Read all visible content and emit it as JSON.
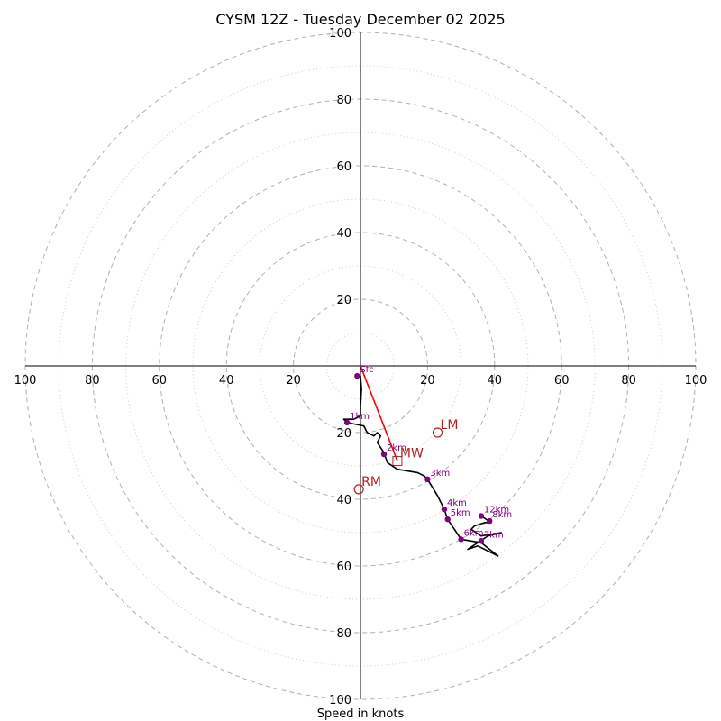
{
  "chart_data": {
    "type": "hodograph",
    "title": "CYSM 12Z - Tuesday December 02 2025",
    "xlabel": "Speed in knots",
    "max_speed": 100,
    "major_rings": [
      20,
      40,
      60,
      80,
      100
    ],
    "minor_rings": [
      10,
      30,
      50,
      70,
      90
    ],
    "tick_labels": {
      "top": [
        "20",
        "40",
        "60",
        "80",
        "100"
      ],
      "bottom": [
        "20",
        "40",
        "60",
        "80",
        "100"
      ],
      "left": [
        "20",
        "40",
        "60",
        "80",
        "100"
      ],
      "right": [
        "20",
        "40",
        "60",
        "80",
        "100"
      ]
    },
    "hodograph_trace": [
      [
        0,
        -3
      ],
      [
        0.3,
        -7
      ],
      [
        0,
        -12
      ],
      [
        0,
        -15
      ],
      [
        -2,
        -16
      ],
      [
        -5,
        -16
      ],
      [
        -4,
        -17
      ],
      [
        1,
        -18
      ],
      [
        2,
        -20
      ],
      [
        4,
        -21
      ],
      [
        5,
        -20
      ],
      [
        6,
        -21
      ],
      [
        5,
        -23
      ],
      [
        7,
        -26
      ],
      [
        8,
        -29
      ],
      [
        11,
        -31
      ],
      [
        17,
        -32
      ],
      [
        19,
        -33
      ],
      [
        20,
        -34
      ],
      [
        23,
        -39
      ],
      [
        25,
        -43
      ],
      [
        26,
        -46
      ],
      [
        28,
        -49
      ],
      [
        30,
        -52
      ],
      [
        36,
        -53
      ],
      [
        41,
        -57
      ],
      [
        35,
        -54
      ],
      [
        32,
        -55
      ],
      [
        38,
        -51
      ],
      [
        42,
        -50
      ],
      [
        36,
        -51
      ],
      [
        33,
        -49
      ],
      [
        34,
        -48
      ],
      [
        37,
        -47
      ],
      [
        39,
        -47
      ],
      [
        36,
        -45
      ]
    ],
    "height_markers": [
      {
        "label": "Sfc",
        "u": -1,
        "v": -3
      },
      {
        "label": "1km",
        "u": -4,
        "v": -17
      },
      {
        "label": "2km",
        "u": 7,
        "v": -26.5
      },
      {
        "label": "3km",
        "u": 20,
        "v": -34
      },
      {
        "label": "4km",
        "u": 25,
        "v": -43
      },
      {
        "label": "5km",
        "u": 26,
        "v": -46
      },
      {
        "label": "6km",
        "u": 30,
        "v": -52
      },
      {
        "label": "7km",
        "u": 36,
        "v": -52.5
      },
      {
        "label": "8km",
        "u": 38.5,
        "v": -46.5
      },
      {
        "label": "12km",
        "u": 36,
        "v": -45
      }
    ],
    "mean_wind_vector": {
      "from": [
        0,
        0
      ],
      "to": [
        11,
        -28.5
      ]
    },
    "storm_motions": [
      {
        "label": "LM",
        "u": 23,
        "v": -20,
        "marker": "circle"
      },
      {
        "label": "MW",
        "u": 11,
        "v": -28.5,
        "marker": "square"
      },
      {
        "label": "RM",
        "u": -0.5,
        "v": -37,
        "marker": "circle"
      }
    ],
    "colors": {
      "trace": "#000000",
      "marker": "#800080",
      "vector": "#ff0000",
      "motion": "#b22222",
      "major_grid": "#b0b0b0",
      "minor_grid": "#cccccc"
    }
  }
}
